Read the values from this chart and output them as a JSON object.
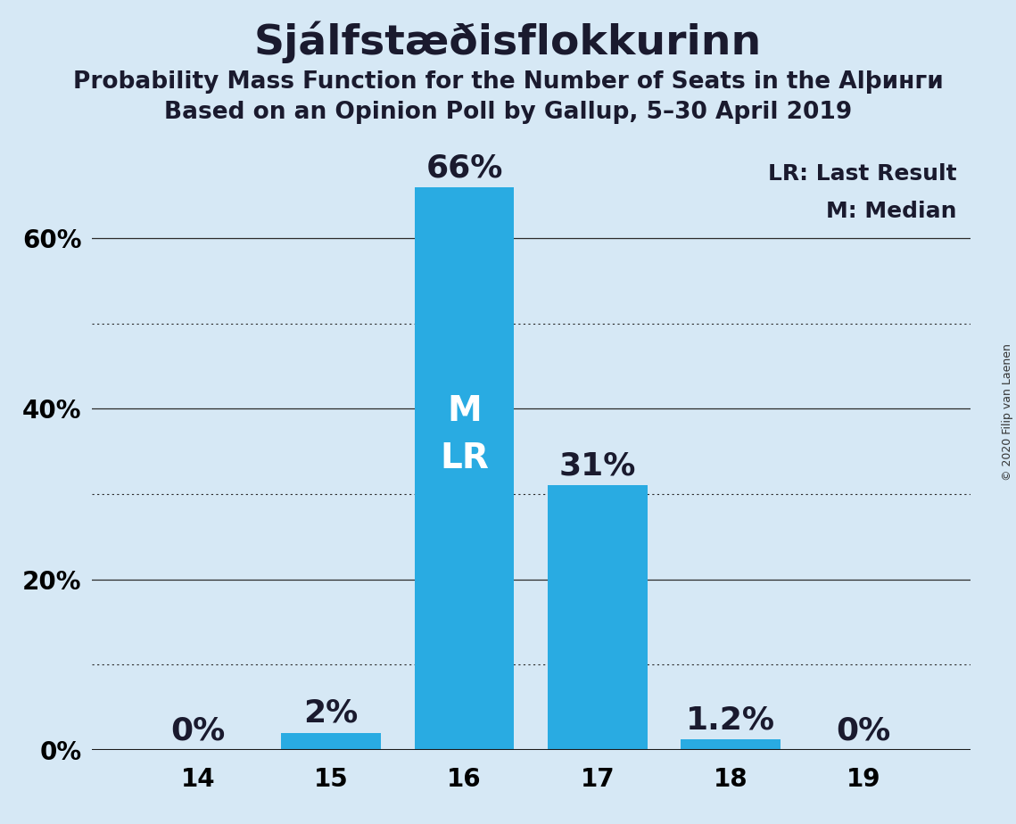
{
  "title": "Sjálfstæðisflokkurinn",
  "subtitle1": "Probability Mass Function for the Number of Seats in the Alþинги",
  "subtitle2": "Based on an Opinion Poll by Gallup, 5–30 April 2019",
  "subtitle1_clean": "Probability Mass Function for the Number of Seats in the Alþинги",
  "copyright": "© 2020 Filip van Laenen",
  "seats": [
    14,
    15,
    16,
    17,
    18,
    19
  ],
  "probabilities": [
    0.0,
    2.0,
    66.0,
    31.0,
    1.2,
    0.0
  ],
  "bar_color": "#29abe2",
  "bg_color": "#d6e8f5",
  "label_color_dark": "#1a1a2e",
  "label_color_white": "#ffffff",
  "median_seat": 16,
  "lr_seat": 16,
  "legend_lr": "LR: Last Result",
  "legend_m": "M: Median",
  "ylim_max": 72,
  "ylabel_ticks": [
    0,
    20,
    40,
    60
  ],
  "solid_gridlines": [
    20,
    40,
    60
  ],
  "dotted_gridlines": [
    10,
    30,
    50
  ],
  "bar_width": 0.75,
  "title_fontsize": 34,
  "subtitle_fontsize": 19,
  "tick_fontsize": 20,
  "annotation_fontsize": 26,
  "ml_fontsize": 28,
  "legend_fontsize": 18,
  "copyright_fontsize": 9
}
